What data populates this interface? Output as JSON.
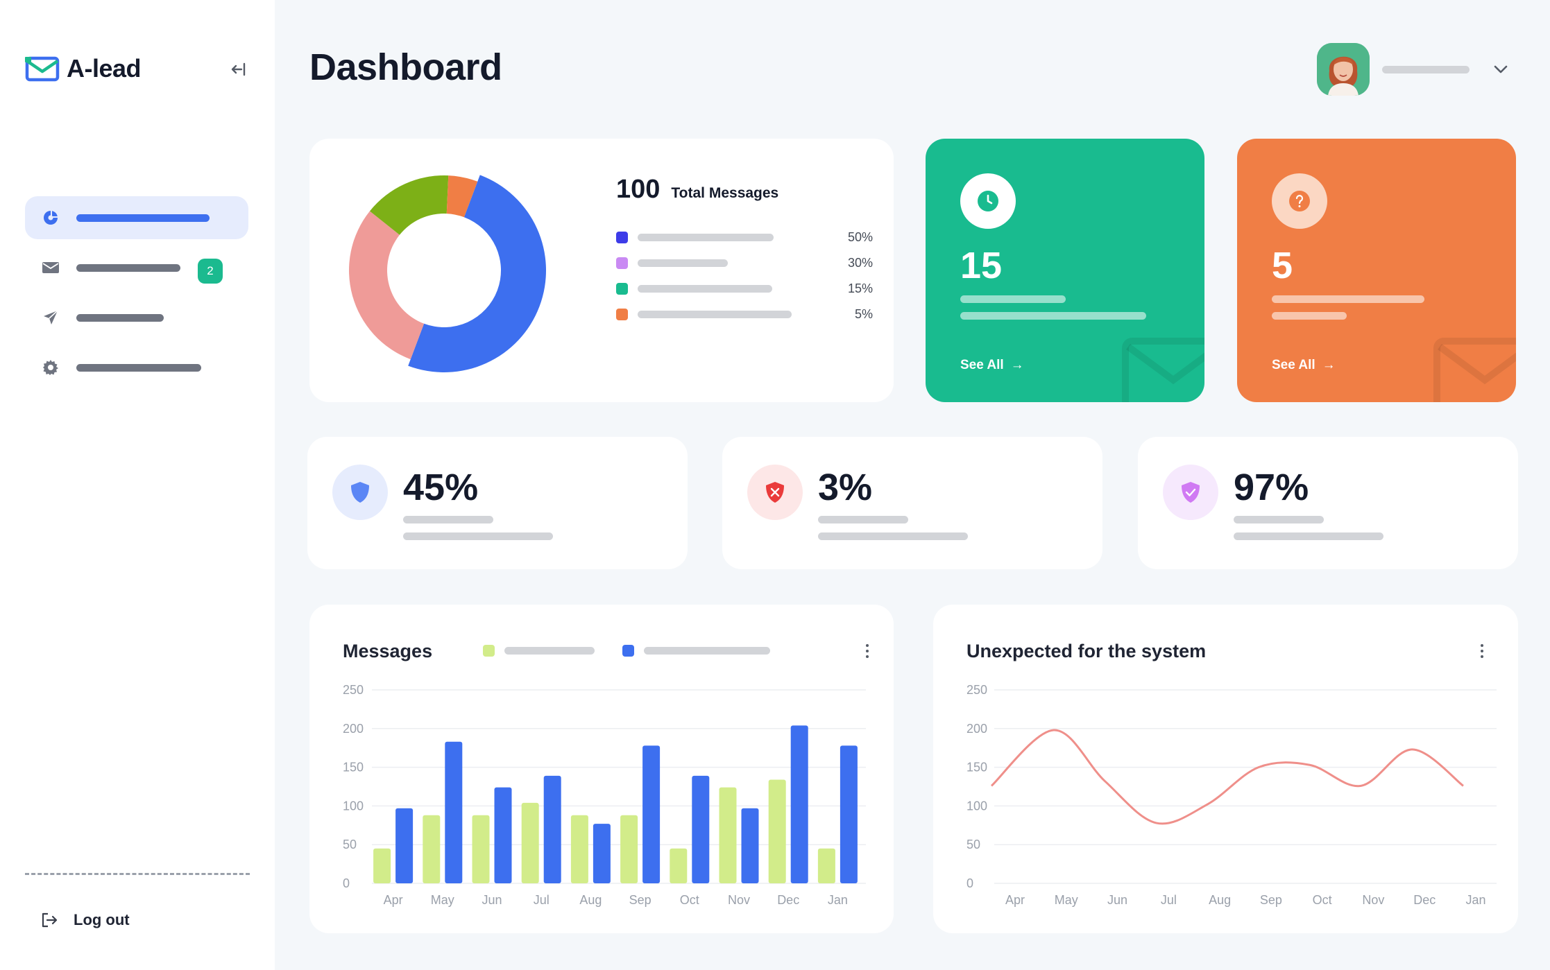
{
  "app": {
    "name": "A-lead"
  },
  "header": {
    "title": "Dashboard"
  },
  "sidebar": {
    "items": [
      {
        "icon": "chart-pie-icon",
        "active": true
      },
      {
        "icon": "mail-icon",
        "badge": "2"
      },
      {
        "icon": "send-icon"
      },
      {
        "icon": "gear-icon"
      }
    ],
    "logout_label": "Log out"
  },
  "messages_summary": {
    "total": "100",
    "total_label": "Total Messages",
    "legend": [
      {
        "color": "#3d3ce8",
        "pct": "50%"
      },
      {
        "color": "#c98af3",
        "pct": "30%"
      },
      {
        "color": "#19bb8f",
        "pct": "15%"
      },
      {
        "color": "#f07e45",
        "pct": "5%"
      }
    ]
  },
  "stat_cards": [
    {
      "value": "15",
      "link": "See All",
      "color": "#19bb8f",
      "icon": "clock-icon"
    },
    {
      "value": "5",
      "link": "See All",
      "color": "#f07e45",
      "icon": "question-icon"
    }
  ],
  "metrics": [
    {
      "value": "45%",
      "icon": "shield-icon",
      "icon_bg": "#e6ecfd",
      "icon_color": "#5b86f5"
    },
    {
      "value": "3%",
      "icon": "shield-x-icon",
      "icon_bg": "#fde7e7",
      "icon_color": "#ea3b3b"
    },
    {
      "value": "97%",
      "icon": "shield-check-icon",
      "icon_bg": "#f6e9fd",
      "icon_color": "#d07af3"
    }
  ],
  "colors": {
    "accent": "#3d6fef",
    "green": "#19bb8f",
    "orange": "#f07e45",
    "bar_light": "#d2ec8a",
    "bar_blue": "#3d6fef",
    "line": "#ef8f8a"
  },
  "chart_data": [
    {
      "type": "pie",
      "title": "",
      "categories": [
        "",
        "",
        "",
        ""
      ],
      "values": [
        50,
        30,
        15,
        5
      ],
      "colors": [
        "#3d6fef",
        "#ef9b98",
        "#7db017",
        "#f07e45"
      ],
      "donut": true
    },
    {
      "type": "bar",
      "title": "Messages",
      "categories": [
        "Apr",
        "May",
        "Jun",
        "Jul",
        "Aug",
        "Sep",
        "Oct",
        "Nov",
        "Dec",
        "Jan"
      ],
      "series": [
        {
          "values": [
            45,
            88,
            88,
            104,
            88,
            88,
            45,
            124,
            134,
            45
          ],
          "color": "#d2ec8a"
        },
        {
          "values": [
            97,
            183,
            124,
            139,
            77,
            178,
            139,
            97,
            204,
            178
          ],
          "color": "#3d6fef"
        }
      ],
      "yticks": [
        "250",
        "200",
        "150",
        "100",
        "50",
        "0"
      ],
      "ylim": [
        0,
        250
      ],
      "grid": true
    },
    {
      "type": "line",
      "title": "Unexpected for the system",
      "categories": [
        "Apr",
        "May",
        "Jun",
        "Jul",
        "Aug",
        "Sep",
        "Oct",
        "Nov",
        "Dec",
        "Jan"
      ],
      "series": [
        {
          "values": [
            126,
            198,
            132,
            78,
            102,
            150,
            153,
            126,
            173,
            126
          ],
          "color": "#ef8f8a"
        }
      ],
      "yticks": [
        "250",
        "200",
        "150",
        "100",
        "50",
        "0"
      ],
      "ylim": [
        0,
        250
      ],
      "grid": true
    }
  ]
}
